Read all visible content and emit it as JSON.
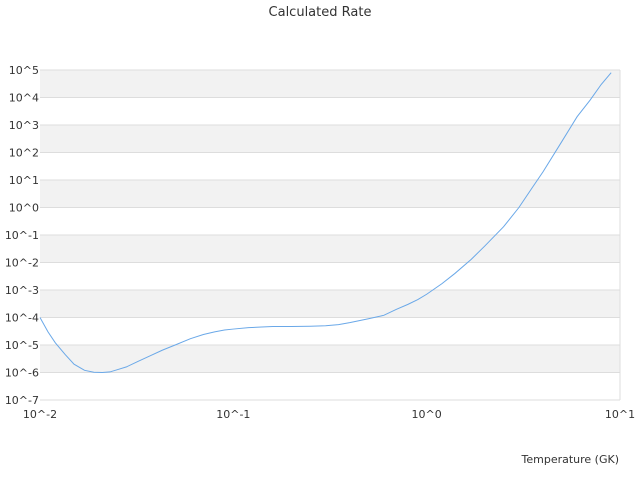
{
  "chart_data": {
    "type": "line",
    "title": "Calculated Rate",
    "xlabel": "Temperature (GK)",
    "ylabel": "",
    "x_scale": "log",
    "y_scale": "log",
    "xlim": [
      0.01,
      10
    ],
    "ylim": [
      1e-07,
      100000
    ],
    "x_ticks": [
      "10^-2",
      "10^-1",
      "10^0",
      "10^1"
    ],
    "y_ticks": [
      "10^5",
      "10^4",
      "10^3",
      "10^2",
      "10^1",
      "10^0",
      "10^-1",
      "10^-2",
      "10^-3",
      "10^-4",
      "10^-5",
      "10^-6",
      "10^-7"
    ],
    "grid": "alternating horizontal bands",
    "legend": "none",
    "colors": {
      "line": "#6aa8e8",
      "band": "#f2f2f2",
      "grid": "#dddddd",
      "text": "#333333"
    },
    "series": [
      {
        "x": [
          0.01,
          0.011,
          0.012,
          0.0135,
          0.015,
          0.017,
          0.019,
          0.021,
          0.023,
          0.025,
          0.028,
          0.032,
          0.037,
          0.043,
          0.05,
          0.06,
          0.07,
          0.08,
          0.09,
          0.1,
          0.12,
          0.14,
          0.16,
          0.2,
          0.25,
          0.3,
          0.35,
          0.4,
          0.5,
          0.6,
          0.7,
          0.8,
          0.9,
          1.0,
          1.2,
          1.4,
          1.7,
          2.0,
          2.5,
          3.0,
          3.5,
          4.0,
          5.0,
          6.0,
          7.0,
          8.0,
          9.0
        ],
        "y": [
          0.0001,
          3e-05,
          1.2e-05,
          4.5e-06,
          2e-06,
          1.2e-06,
          1.02e-06,
          1e-06,
          1.05e-06,
          1.25e-06,
          1.6e-06,
          2.5e-06,
          4e-06,
          6.5e-06,
          1e-05,
          1.7e-05,
          2.4e-05,
          3e-05,
          3.5e-05,
          3.8e-05,
          4.3e-05,
          4.5e-05,
          4.7e-05,
          4.7e-05,
          4.8e-05,
          5e-05,
          5.5e-05,
          6.5e-05,
          9e-05,
          0.00012,
          0.0002,
          0.0003,
          0.00045,
          0.0007,
          0.0017,
          0.004,
          0.013,
          0.04,
          0.2,
          1.0,
          5.0,
          20.0,
          250.0,
          2000.0,
          8000.0,
          30000.0,
          80000.0
        ]
      }
    ]
  }
}
